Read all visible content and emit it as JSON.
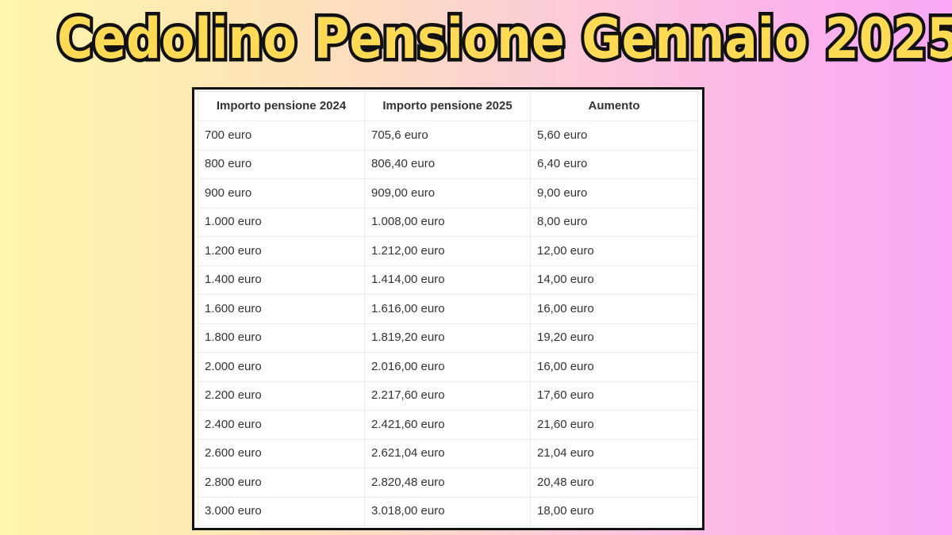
{
  "title": "Cedolino Pensione Gennaio 2025",
  "table": {
    "headers": [
      "Importo pensione 2024",
      "Importo pensione 2025",
      "Aumento"
    ],
    "rows": [
      [
        "700 euro",
        "705,6 euro",
        "5,60 euro"
      ],
      [
        "800 euro",
        "806,40 euro",
        "6,40 euro"
      ],
      [
        "900 euro",
        "909,00 euro",
        "9,00 euro"
      ],
      [
        "1.000 euro",
        "1.008,00 euro",
        "8,00 euro"
      ],
      [
        "1.200 euro",
        "1.212,00 euro",
        "12,00 euro"
      ],
      [
        "1.400 euro",
        "1.414,00 euro",
        "14,00 euro"
      ],
      [
        "1.600 euro",
        "1.616,00 euro",
        "16,00 euro"
      ],
      [
        "1.800 euro",
        "1.819,20 euro",
        "19,20 euro"
      ],
      [
        "2.000 euro",
        "2.016,00 euro",
        "16,00 euro"
      ],
      [
        "2.200 euro",
        "2.217,60 euro",
        "17,60 euro"
      ],
      [
        "2.400 euro",
        "2.421,60 euro",
        "21,60 euro"
      ],
      [
        "2.600 euro",
        "2.621,04 euro",
        "21,04 euro"
      ],
      [
        "2.800 euro",
        "2.820,48 euro",
        "20,48 euro"
      ],
      [
        "3.000 euro",
        "3.018,00 euro",
        "18,00 euro"
      ]
    ]
  },
  "colors": {
    "title_fill": "#ffdb55",
    "title_stroke": "#111111",
    "frame": "#111111"
  }
}
